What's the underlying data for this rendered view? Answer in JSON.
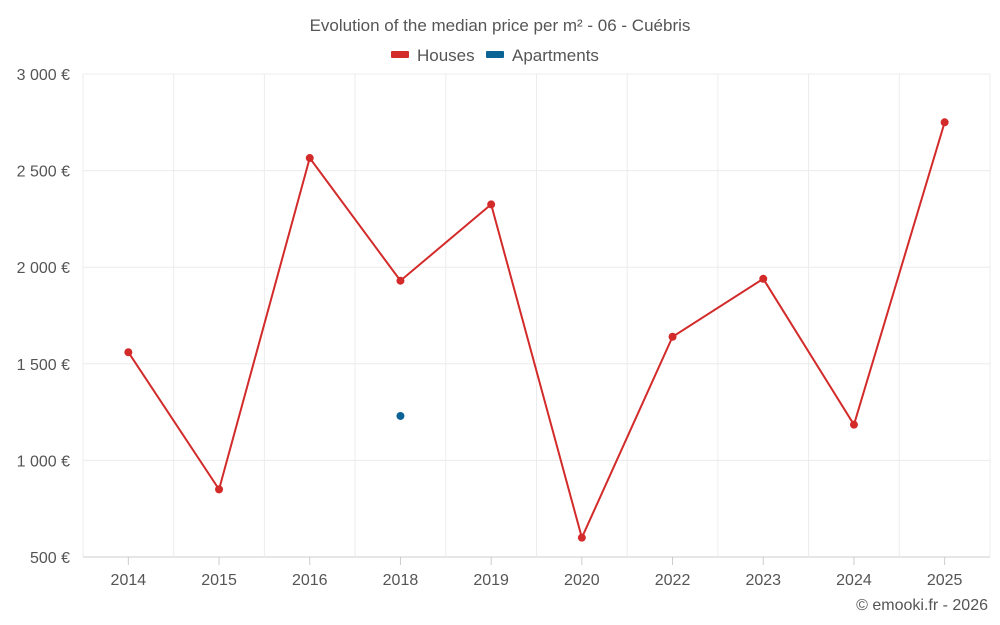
{
  "chart_data": {
    "type": "line",
    "title": "Evolution of the median price per m² - 06 - Cuébris",
    "categories": [
      "2014",
      "2015",
      "2016",
      "2018",
      "2019",
      "2020",
      "2022",
      "2023",
      "2024",
      "2025"
    ],
    "series": [
      {
        "name": "Houses",
        "color": "#d32a2a",
        "values": [
          1560,
          850,
          2565,
          1930,
          2325,
          600,
          1640,
          1940,
          1185,
          2750
        ]
      },
      {
        "name": "Apartments",
        "color": "#0b6396",
        "values": [
          null,
          null,
          null,
          1230,
          null,
          null,
          null,
          null,
          null,
          null
        ]
      }
    ],
    "y_ticks": [
      500,
      1000,
      1500,
      2000,
      2500,
      3000
    ],
    "y_tick_labels": [
      "500 €",
      "1 000 €",
      "1 500 €",
      "2 000 €",
      "2 500 €",
      "3 000 €"
    ],
    "ylim": [
      500,
      3000
    ],
    "legend_position": "top-center",
    "grid": true
  },
  "credit": "© emooki.fr - 2026"
}
